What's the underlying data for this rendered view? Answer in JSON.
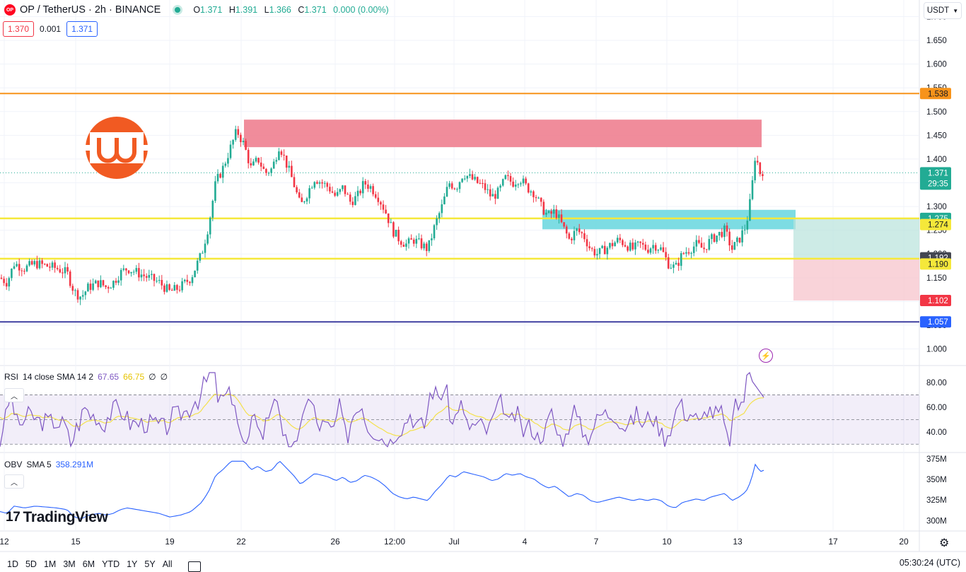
{
  "header": {
    "symbol_icon": "OP",
    "title": "OP / TetherUS · 2h · BINANCE",
    "o_label": "O",
    "o_value": "1.371",
    "h_label": "H",
    "h_value": "1.391",
    "l_label": "L",
    "l_value": "1.366",
    "c_label": "C",
    "c_value": "1.371",
    "change": "0.000 (0.00%)",
    "bid": "1.370",
    "spread": "0.001",
    "ask": "1.371",
    "currency": "USDT"
  },
  "colors": {
    "up": "#22ab94",
    "down": "#f23645",
    "orange_level": "#f7931a",
    "yellow_level": "#f5e83a",
    "purple_level": "#3f3fa0",
    "supply_zone": "#ee8090",
    "demand_zone": "#6fd8e0",
    "rsi_line": "#7e57c2",
    "rsi_sma": "#f4e14c",
    "obv_line": "#2962ff",
    "logo": "#f15a22"
  },
  "chart_data": {
    "type": "candlestick",
    "price_axis": {
      "ticks": [
        "1.700",
        "1.650",
        "1.600",
        "1.550",
        "1.500",
        "1.450",
        "1.400",
        "1.350",
        "1.300",
        "1.250",
        "1.200",
        "1.150",
        "1.100",
        "1.050",
        "1.000"
      ],
      "range": [
        0.965,
        1.735
      ]
    },
    "time_axis": {
      "ticks": [
        "12",
        "15",
        "19",
        "22",
        "26",
        "12:00",
        "Jul",
        "4",
        "7",
        "10",
        "13",
        "17",
        "20"
      ]
    },
    "price_labels": {
      "orange": "1.538",
      "current": "1.371",
      "countdown": "29:35",
      "tp_top": "1.275",
      "entry_high": "1.274",
      "sma_mark": "1.192",
      "entry_low": "1.190",
      "stop": "1.102",
      "purple": "1.057"
    },
    "levels": [
      {
        "name": "resistance-orange",
        "price": 1.538
      },
      {
        "name": "support-yellow-upper",
        "price": 1.275
      },
      {
        "name": "support-yellow-lower",
        "price": 1.19
      },
      {
        "name": "support-purple",
        "price": 1.057
      }
    ],
    "zones": [
      {
        "name": "supply-zone",
        "from_price": 1.425,
        "to_price": 1.483
      },
      {
        "name": "demand-zone",
        "from_price": 1.252,
        "to_price": 1.293
      }
    ],
    "position": {
      "entry": 1.19,
      "take_profit": 1.275,
      "stop_loss": 1.102
    },
    "candles_close_path": [
      [
        0,
        1.15
      ],
      [
        10,
        1.14
      ],
      [
        20,
        1.18
      ],
      [
        35,
        1.17
      ],
      [
        50,
        1.18
      ],
      [
        65,
        1.175
      ],
      [
        80,
        1.17
      ],
      [
        95,
        1.16
      ],
      [
        105,
        1.12
      ],
      [
        115,
        1.11
      ],
      [
        125,
        1.13
      ],
      [
        140,
        1.14
      ],
      [
        150,
        1.13
      ],
      [
        160,
        1.14
      ],
      [
        170,
        1.16
      ],
      [
        180,
        1.17
      ],
      [
        195,
        1.16
      ],
      [
        210,
        1.15
      ],
      [
        225,
        1.14
      ],
      [
        240,
        1.12
      ],
      [
        255,
        1.13
      ],
      [
        270,
        1.15
      ],
      [
        285,
        1.2
      ],
      [
        295,
        1.26
      ],
      [
        305,
        1.35
      ],
      [
        315,
        1.38
      ],
      [
        325,
        1.42
      ],
      [
        335,
        1.46
      ],
      [
        345,
        1.43
      ],
      [
        355,
        1.38
      ],
      [
        365,
        1.4
      ],
      [
        375,
        1.37
      ],
      [
        385,
        1.38
      ],
      [
        395,
        1.43
      ],
      [
        405,
        1.39
      ],
      [
        415,
        1.35
      ],
      [
        425,
        1.3
      ],
      [
        435,
        1.33
      ],
      [
        445,
        1.36
      ],
      [
        455,
        1.35
      ],
      [
        465,
        1.34
      ],
      [
        475,
        1.32
      ],
      [
        485,
        1.34
      ],
      [
        495,
        1.31
      ],
      [
        505,
        1.32
      ],
      [
        515,
        1.35
      ],
      [
        525,
        1.34
      ],
      [
        535,
        1.32
      ],
      [
        545,
        1.29
      ],
      [
        555,
        1.25
      ],
      [
        565,
        1.23
      ],
      [
        575,
        1.22
      ],
      [
        585,
        1.23
      ],
      [
        595,
        1.22
      ],
      [
        605,
        1.21
      ],
      [
        615,
        1.26
      ],
      [
        625,
        1.3
      ],
      [
        635,
        1.35
      ],
      [
        645,
        1.34
      ],
      [
        655,
        1.37
      ],
      [
        665,
        1.36
      ],
      [
        675,
        1.35
      ],
      [
        685,
        1.34
      ],
      [
        695,
        1.32
      ],
      [
        705,
        1.33
      ],
      [
        715,
        1.36
      ],
      [
        725,
        1.35
      ],
      [
        735,
        1.36
      ],
      [
        745,
        1.34
      ],
      [
        755,
        1.33
      ],
      [
        765,
        1.3
      ],
      [
        775,
        1.28
      ],
      [
        785,
        1.29
      ],
      [
        795,
        1.26
      ],
      [
        805,
        1.23
      ],
      [
        815,
        1.25
      ],
      [
        825,
        1.24
      ],
      [
        835,
        1.21
      ],
      [
        845,
        1.2
      ],
      [
        855,
        1.21
      ],
      [
        865,
        1.22
      ],
      [
        875,
        1.23
      ],
      [
        885,
        1.22
      ],
      [
        895,
        1.21
      ],
      [
        905,
        1.22
      ],
      [
        915,
        1.21
      ],
      [
        925,
        1.22
      ],
      [
        935,
        1.21
      ],
      [
        945,
        1.18
      ],
      [
        955,
        1.17
      ],
      [
        965,
        1.2
      ],
      [
        975,
        1.21
      ],
      [
        985,
        1.22
      ],
      [
        995,
        1.21
      ],
      [
        1005,
        1.23
      ],
      [
        1015,
        1.24
      ],
      [
        1025,
        1.25
      ],
      [
        1035,
        1.21
      ],
      [
        1045,
        1.23
      ],
      [
        1055,
        1.26
      ],
      [
        1062,
        1.32
      ],
      [
        1068,
        1.41
      ],
      [
        1075,
        1.37
      ],
      [
        1082,
        1.38
      ]
    ],
    "rsi": {
      "label": "RSI",
      "params": "14 close SMA 14 2",
      "value": "67.65",
      "sma_value": "66.75",
      "extra1": "∅",
      "extra2": "∅",
      "ticks": [
        "80.00",
        "60.00",
        "40.00"
      ],
      "levels": [
        70,
        50,
        30
      ],
      "range": [
        25,
        92
      ]
    },
    "obv": {
      "label": "OBV",
      "params": "SMA 5",
      "value": "358.291M",
      "ticks": [
        "375M",
        "350M",
        "325M",
        "300M"
      ],
      "range": [
        290,
        380
      ]
    }
  },
  "branding": {
    "logo_text": "TradingView",
    "logo_mark": "17"
  },
  "bottom_bar": {
    "ranges": [
      "1D",
      "5D",
      "1M",
      "3M",
      "6M",
      "YTD",
      "1Y",
      "5Y",
      "All"
    ],
    "clock": "05:30:24 (UTC)"
  }
}
